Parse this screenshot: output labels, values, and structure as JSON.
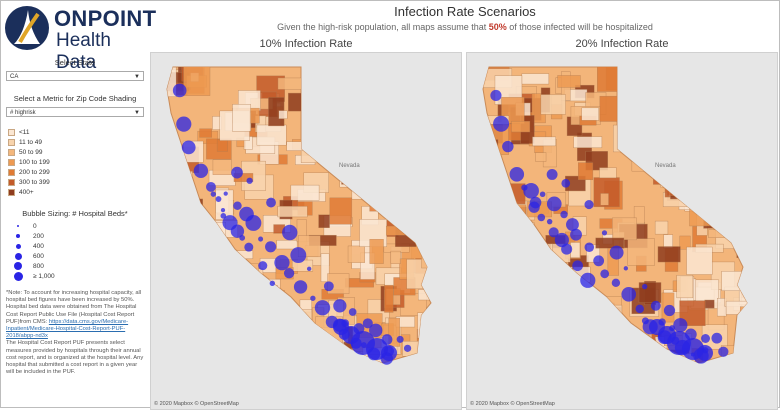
{
  "logo": {
    "title": "ONPOINT",
    "subtitle": "Health Data"
  },
  "header": {
    "title": "Infection Rate Scenarios",
    "subtitle_pre": "Given the high-risk population, all maps assume that ",
    "subtitle_pct": "50%",
    "subtitle_post": " of those infected will be hospitalized"
  },
  "sidebar": {
    "state_label": "Select State",
    "state_value": "CA",
    "metric_label": "Select a Metric for Zip Code Shading",
    "metric_value": "# highrisk",
    "shading_legend": [
      {
        "label": "<11",
        "color": "#fbe7d3"
      },
      {
        "label": "11 to 49",
        "color": "#f8d4ad"
      },
      {
        "label": "50 to 99",
        "color": "#f4b77c"
      },
      {
        "label": "100 to 199",
        "color": "#ee9a52"
      },
      {
        "label": "200 to 299",
        "color": "#e07b35"
      },
      {
        "label": "300 to 399",
        "color": "#c35b2a"
      },
      {
        "label": "400+",
        "color": "#8f3d1e"
      }
    ],
    "bubble_label": "Bubble Sizing: # Hospital Beds*",
    "bubble_legend": [
      "0",
      "200",
      "400",
      "600",
      "800",
      "≥ 1,000"
    ],
    "note": "*Note: To account for increasing hospital capacity, all hospital bed figures have been increased by 50%.",
    "note2": "Hospital bed data were obtained from The Hospital Cost Report Public Use File (Hospital Cost Report PUF)from CMS: ",
    "note_link": "https://data.cms.gov/Medicare-Inpatient/Medicare-Hospital-Cost-Report-PUF-2018/abpp-nd3x",
    "note3": "The Hospital Cost Report PUF presents select measures provided by hospitals through their annual cost report, and is organized at the hospital level. Any hospital that submitted a cost report in a given year will be included in the PUF."
  },
  "maps": [
    {
      "title": "10% Infection Rate",
      "credit": "© 2020 Mapbox © OpenStreetMap",
      "nevada": "Nevada"
    },
    {
      "title": "20% Infection Rate",
      "credit": "© 2020 Mapbox © OpenStreetMap",
      "nevada": "Nevada"
    }
  ],
  "colors": {
    "bubble": "#2a24e5",
    "brand": "#1b2f5b",
    "accent": "#c0392b"
  }
}
